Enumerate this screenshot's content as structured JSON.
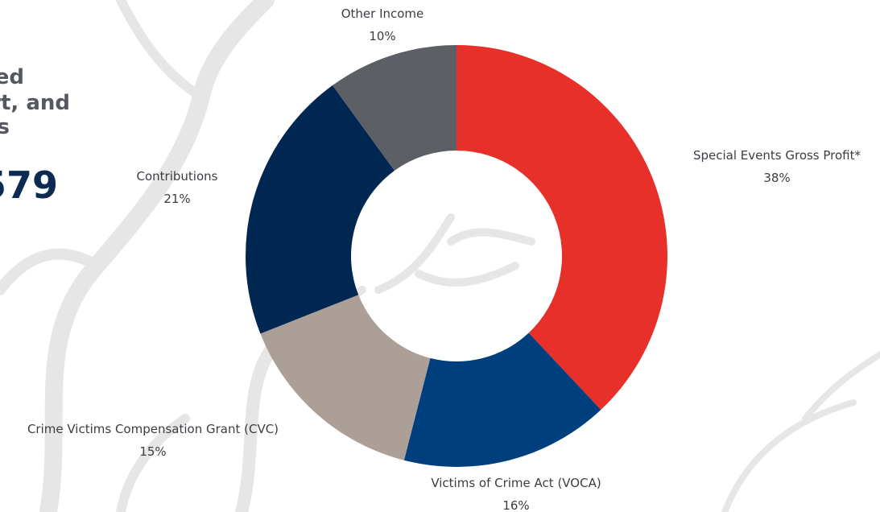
{
  "chart_data": {
    "type": "donut",
    "categories": [
      "Special Events Gross Profit*",
      "Victims of Crime Act (VOCA)",
      "Crime Victims Compensation Grant (CVC)",
      "Contributions",
      "Other Income"
    ],
    "values": [
      38,
      16,
      15,
      21,
      10
    ],
    "value_labels": [
      "38%",
      "16%",
      "15%",
      "21%",
      "10%"
    ],
    "colors": [
      "#e8302a",
      "#003f7d",
      "#ab9f97",
      "#002652",
      "#5c5f63"
    ],
    "annotations": [
      "ed",
      "rt, and",
      "s",
      "579"
    ]
  }
}
